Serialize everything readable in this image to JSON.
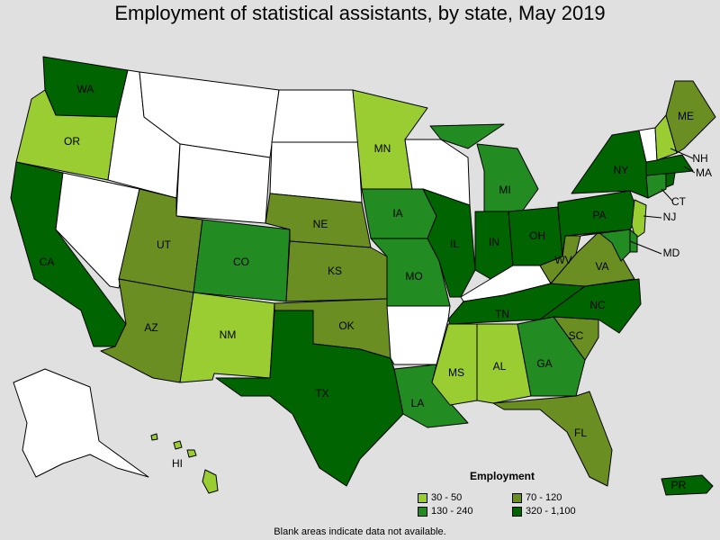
{
  "title": "Employment of statistical assistants, by state, May 2019",
  "footer": "Blank areas indicate data not available.",
  "legend": {
    "title": "Employment",
    "items": [
      {
        "label": "30 - 50",
        "color": "#9acd32"
      },
      {
        "label": "70 - 120",
        "color": "#6b8e23"
      },
      {
        "label": "130 - 240",
        "color": "#228b22"
      },
      {
        "label": "320 - 1,100",
        "color": "#006400"
      }
    ]
  },
  "colors": {
    "none": "#ffffff",
    "c1": "#9acd32",
    "c2": "#6b8e23",
    "c3": "#228b22",
    "c4": "#006400"
  },
  "states": {
    "WA": {
      "label": "WA",
      "class": "c4"
    },
    "OR": {
      "label": "OR",
      "class": "c1"
    },
    "CA": {
      "label": "CA",
      "class": "c4"
    },
    "AZ": {
      "label": "AZ",
      "class": "c2"
    },
    "UT": {
      "label": "UT",
      "class": "c2"
    },
    "CO": {
      "label": "CO",
      "class": "c3"
    },
    "NM": {
      "label": "NM",
      "class": "c1"
    },
    "TX": {
      "label": "TX",
      "class": "c4"
    },
    "OK": {
      "label": "OK",
      "class": "c2"
    },
    "KS": {
      "label": "KS",
      "class": "c2"
    },
    "NE": {
      "label": "NE",
      "class": "c2"
    },
    "MN": {
      "label": "MN",
      "class": "c1"
    },
    "IA": {
      "label": "IA",
      "class": "c3"
    },
    "MO": {
      "label": "MO",
      "class": "c3"
    },
    "LA": {
      "label": "LA",
      "class": "c3"
    },
    "MS": {
      "label": "MS",
      "class": "c1"
    },
    "AL": {
      "label": "AL",
      "class": "c1"
    },
    "GA": {
      "label": "GA",
      "class": "c3"
    },
    "FL": {
      "label": "FL",
      "class": "c2"
    },
    "SC": {
      "label": "SC",
      "class": "c2"
    },
    "NC": {
      "label": "NC",
      "class": "c4"
    },
    "TN": {
      "label": "TN",
      "class": "c4"
    },
    "IL": {
      "label": "IL",
      "class": "c4"
    },
    "IN": {
      "label": "IN",
      "class": "c4"
    },
    "OH": {
      "label": "OH",
      "class": "c4"
    },
    "MI": {
      "label": "MI",
      "class": "c3"
    },
    "WV": {
      "label": "WV",
      "class": "c2"
    },
    "VA": {
      "label": "VA",
      "class": "c2"
    },
    "PA": {
      "label": "PA",
      "class": "c4"
    },
    "NY": {
      "label": "NY",
      "class": "c4"
    },
    "ME": {
      "label": "ME",
      "class": "c2"
    },
    "NH": {
      "label": "NH",
      "class": "c1"
    },
    "MA": {
      "label": "MA",
      "class": "c4"
    },
    "CT": {
      "label": "CT",
      "class": "c3"
    },
    "NJ": {
      "label": "NJ",
      "class": "c1"
    },
    "MD": {
      "label": "MD",
      "class": "c3"
    },
    "HI": {
      "label": "HI",
      "class": "c1"
    },
    "PR": {
      "label": "PR",
      "class": "c4"
    },
    "ID": {
      "class": "none"
    },
    "MT": {
      "class": "none"
    },
    "WY": {
      "class": "none"
    },
    "NV": {
      "class": "none"
    },
    "ND": {
      "class": "none"
    },
    "SD": {
      "class": "none"
    },
    "WI": {
      "class": "none"
    },
    "KY": {
      "class": "none"
    },
    "AR": {
      "class": "none"
    },
    "AK": {
      "class": "none"
    },
    "VT": {
      "class": "none"
    },
    "RI": {
      "class": "c4"
    },
    "DE": {
      "class": "c3"
    }
  }
}
